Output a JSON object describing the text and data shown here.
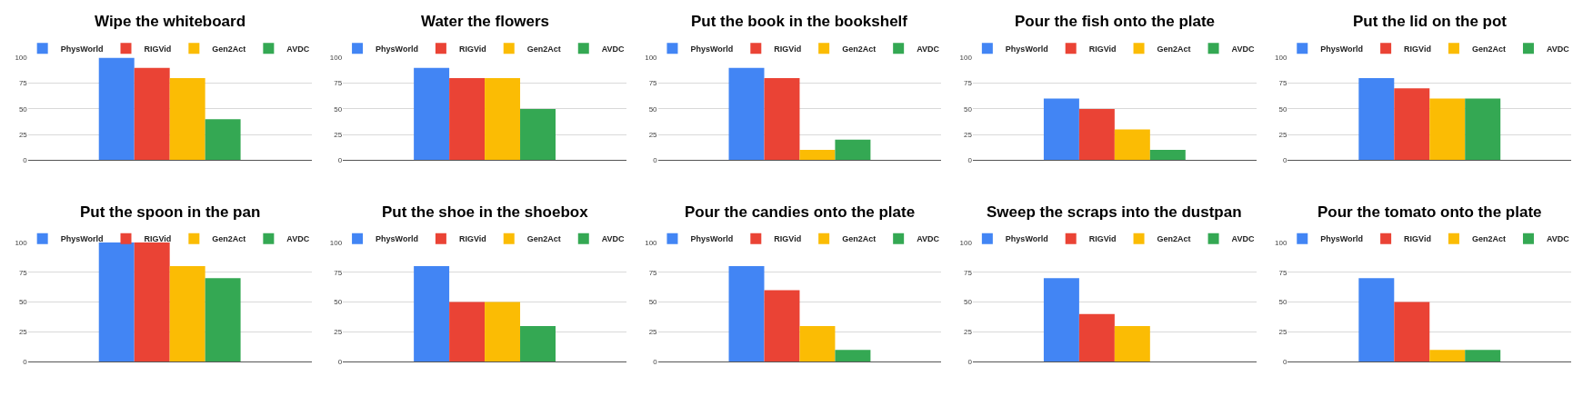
{
  "chart_data": [
    {
      "type": "bar",
      "title": "Wipe the whiteboard",
      "categories": [
        null
      ],
      "ylim": [
        0,
        100
      ],
      "yticks": [
        0,
        25,
        50,
        75,
        100
      ],
      "grid": "y",
      "legend": "top",
      "series": [
        {
          "name": "PhysWorld",
          "color": "#4285f4",
          "values": [
            100
          ]
        },
        {
          "name": "RIGVid",
          "color": "#ea4335",
          "values": [
            90
          ]
        },
        {
          "name": "Gen2Act",
          "color": "#fbbc04",
          "values": [
            80
          ]
        },
        {
          "name": "AVDC",
          "color": "#34a853",
          "values": [
            40
          ]
        }
      ]
    },
    {
      "type": "bar",
      "title": "Water the flowers",
      "categories": [
        null
      ],
      "ylim": [
        0,
        100
      ],
      "yticks": [
        0,
        25,
        50,
        75,
        100
      ],
      "grid": "y",
      "legend": "top",
      "series": [
        {
          "name": "PhysWorld",
          "color": "#4285f4",
          "values": [
            90
          ]
        },
        {
          "name": "RIGVid",
          "color": "#ea4335",
          "values": [
            80
          ]
        },
        {
          "name": "Gen2Act",
          "color": "#fbbc04",
          "values": [
            80
          ]
        },
        {
          "name": "AVDC",
          "color": "#34a853",
          "values": [
            50
          ]
        }
      ]
    },
    {
      "type": "bar",
      "title": "Put the book in the bookshelf",
      "categories": [
        null
      ],
      "ylim": [
        0,
        100
      ],
      "yticks": [
        0,
        25,
        50,
        75,
        100
      ],
      "grid": "y",
      "legend": "top",
      "series": [
        {
          "name": "PhysWorld",
          "color": "#4285f4",
          "values": [
            90
          ]
        },
        {
          "name": "RIGVid",
          "color": "#ea4335",
          "values": [
            80
          ]
        },
        {
          "name": "Gen2Act",
          "color": "#fbbc04",
          "values": [
            10
          ]
        },
        {
          "name": "AVDC",
          "color": "#34a853",
          "values": [
            20
          ]
        }
      ]
    },
    {
      "type": "bar",
      "title": "Pour the fish onto the plate",
      "categories": [
        null
      ],
      "ylim": [
        0,
        100
      ],
      "yticks": [
        0,
        25,
        50,
        75,
        100
      ],
      "grid": "y",
      "legend": "top",
      "series": [
        {
          "name": "PhysWorld",
          "color": "#4285f4",
          "values": [
            60
          ]
        },
        {
          "name": "RIGVid",
          "color": "#ea4335",
          "values": [
            50
          ]
        },
        {
          "name": "Gen2Act",
          "color": "#fbbc04",
          "values": [
            30
          ]
        },
        {
          "name": "AVDC",
          "color": "#34a853",
          "values": [
            10
          ]
        }
      ]
    },
    {
      "type": "bar",
      "title": "Put the lid on the pot",
      "categories": [
        null
      ],
      "ylim": [
        0,
        100
      ],
      "yticks": [
        0,
        25,
        50,
        75,
        100
      ],
      "grid": "y",
      "legend": "top",
      "series": [
        {
          "name": "PhysWorld",
          "color": "#4285f4",
          "values": [
            80
          ]
        },
        {
          "name": "RIGVid",
          "color": "#ea4335",
          "values": [
            70
          ]
        },
        {
          "name": "Gen2Act",
          "color": "#fbbc04",
          "values": [
            60
          ]
        },
        {
          "name": "AVDC",
          "color": "#34a853",
          "values": [
            60
          ]
        }
      ]
    },
    {
      "type": "bar",
      "title": "Put the spoon in the pan",
      "categories": [
        null
      ],
      "ylim": [
        0,
        100
      ],
      "yticks": [
        0,
        25,
        50,
        75,
        100
      ],
      "grid": "y",
      "legend": "top",
      "series": [
        {
          "name": "PhysWorld",
          "color": "#4285f4",
          "values": [
            100
          ]
        },
        {
          "name": "RIGVid",
          "color": "#ea4335",
          "values": [
            100
          ]
        },
        {
          "name": "Gen2Act",
          "color": "#fbbc04",
          "values": [
            80
          ]
        },
        {
          "name": "AVDC",
          "color": "#34a853",
          "values": [
            70
          ]
        }
      ]
    },
    {
      "type": "bar",
      "title": "Put the shoe in the shoebox",
      "categories": [
        null
      ],
      "ylim": [
        0,
        100
      ],
      "yticks": [
        0,
        25,
        50,
        75,
        100
      ],
      "grid": "y",
      "legend": "top",
      "series": [
        {
          "name": "PhysWorld",
          "color": "#4285f4",
          "values": [
            80
          ]
        },
        {
          "name": "RIGVid",
          "color": "#ea4335",
          "values": [
            50
          ]
        },
        {
          "name": "Gen2Act",
          "color": "#fbbc04",
          "values": [
            50
          ]
        },
        {
          "name": "AVDC",
          "color": "#34a853",
          "values": [
            30
          ]
        }
      ]
    },
    {
      "type": "bar",
      "title": "Pour the candies onto the plate",
      "categories": [
        null
      ],
      "ylim": [
        0,
        100
      ],
      "yticks": [
        0,
        25,
        50,
        75,
        100
      ],
      "grid": "y",
      "legend": "top",
      "series": [
        {
          "name": "PhysWorld",
          "color": "#4285f4",
          "values": [
            80
          ]
        },
        {
          "name": "RIGVid",
          "color": "#ea4335",
          "values": [
            60
          ]
        },
        {
          "name": "Gen2Act",
          "color": "#fbbc04",
          "values": [
            30
          ]
        },
        {
          "name": "AVDC",
          "color": "#34a853",
          "values": [
            10
          ]
        }
      ]
    },
    {
      "type": "bar",
      "title": "Sweep the scraps into the dustpan",
      "categories": [
        null
      ],
      "ylim": [
        0,
        100
      ],
      "yticks": [
        0,
        25,
        50,
        75,
        100
      ],
      "grid": "y",
      "legend": "top",
      "series": [
        {
          "name": "PhysWorld",
          "color": "#4285f4",
          "values": [
            70
          ]
        },
        {
          "name": "RIGVid",
          "color": "#ea4335",
          "values": [
            40
          ]
        },
        {
          "name": "Gen2Act",
          "color": "#fbbc04",
          "values": [
            30
          ]
        },
        {
          "name": "AVDC",
          "color": "#34a853",
          "values": [
            0
          ]
        }
      ]
    },
    {
      "type": "bar",
      "title": "Pour the tomato onto the plate",
      "categories": [
        null
      ],
      "ylim": [
        0,
        100
      ],
      "yticks": [
        0,
        25,
        50,
        75,
        100
      ],
      "grid": "y",
      "legend": "top",
      "series": [
        {
          "name": "PhysWorld",
          "color": "#4285f4",
          "values": [
            70
          ]
        },
        {
          "name": "RIGVid",
          "color": "#ea4335",
          "values": [
            50
          ]
        },
        {
          "name": "Gen2Act",
          "color": "#fbbc04",
          "values": [
            10
          ]
        },
        {
          "name": "AVDC",
          "color": "#34a853",
          "values": [
            10
          ]
        }
      ]
    }
  ]
}
